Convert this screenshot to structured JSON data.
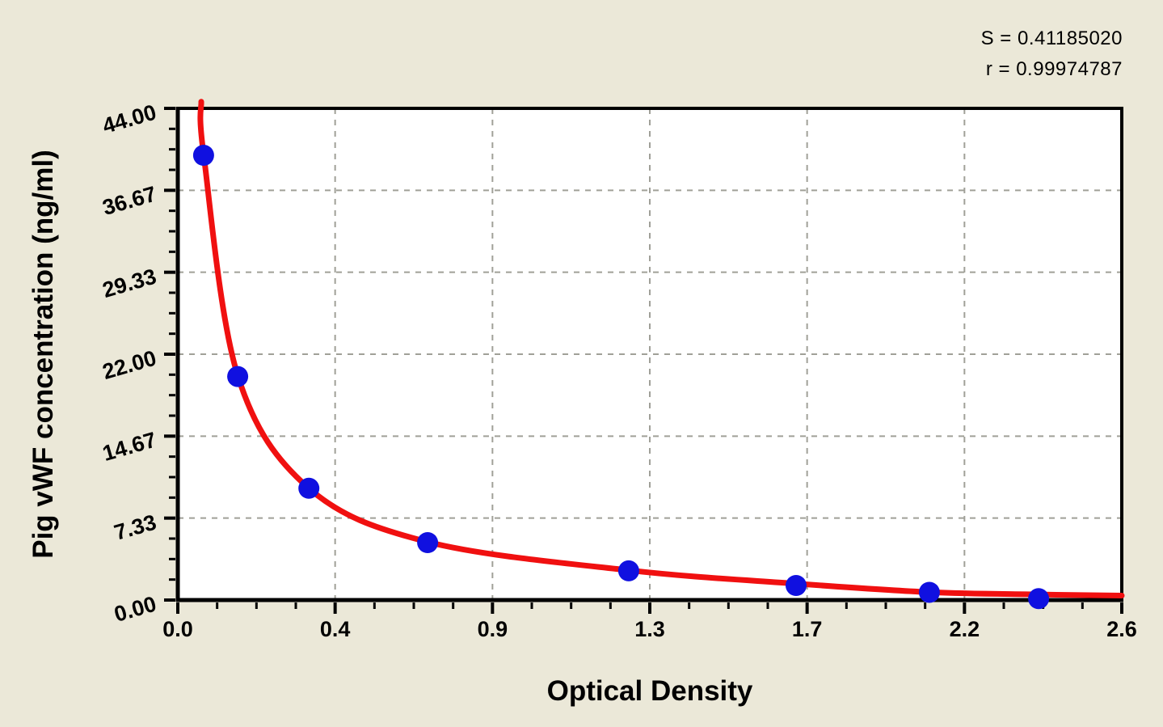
{
  "chart_data": {
    "type": "scatter",
    "title": "",
    "xlabel": "Optical Density",
    "ylabel": "Pig vWF concentration (ng/ml)",
    "stats": {
      "s": "S = 0.41185020",
      "r": "r = 0.99974787"
    },
    "grid": true,
    "legend": false,
    "x_axis": {
      "min": 0,
      "max": 2.6,
      "tick_values": [
        0,
        0.4333,
        0.8667,
        1.3,
        1.7333,
        2.1667,
        2.6
      ],
      "tick_labels": [
        "0.0",
        "0.4",
        "0.9",
        "1.3",
        "1.7",
        "2.2",
        "2.6"
      ],
      "minor_subdivisions": 4
    },
    "y_axis": {
      "min": 0,
      "max": 44,
      "tick_values": [
        0,
        7.3333,
        14.6667,
        22,
        29.3333,
        36.6667,
        44
      ],
      "tick_labels": [
        "0.00",
        "7.33",
        "14.67",
        "22.00",
        "29.33",
        "36.67",
        "44.00"
      ],
      "minor_subdivisions": 4
    },
    "points": [
      {
        "od": 0.071,
        "conc": 39.8
      },
      {
        "od": 0.165,
        "conc": 20.0
      },
      {
        "od": 0.361,
        "conc": 10.0
      },
      {
        "od": 0.688,
        "conc": 5.14
      },
      {
        "od": 1.242,
        "conc": 2.61
      },
      {
        "od": 1.703,
        "conc": 1.3
      },
      {
        "od": 2.07,
        "conc": 0.69
      },
      {
        "od": 2.371,
        "conc": 0.12
      }
    ],
    "fit_curve_points": [
      [
        0.0646,
        44.6
      ],
      [
        0.0715,
        39.8
      ],
      [
        0.165,
        20.1
      ],
      [
        0.361,
        10.0
      ],
      [
        0.688,
        5.2
      ],
      [
        1.242,
        2.66
      ],
      [
        1.703,
        1.47
      ],
      [
        2.07,
        0.7
      ],
      [
        2.371,
        0.5
      ],
      [
        2.6,
        0.4
      ]
    ],
    "colors": {
      "background": "#ebe8d8",
      "plot_background": "#ffffff",
      "curve": "#f01010",
      "marker": "#1010e0",
      "grid": "#a0a098",
      "axis": "#000000"
    }
  }
}
